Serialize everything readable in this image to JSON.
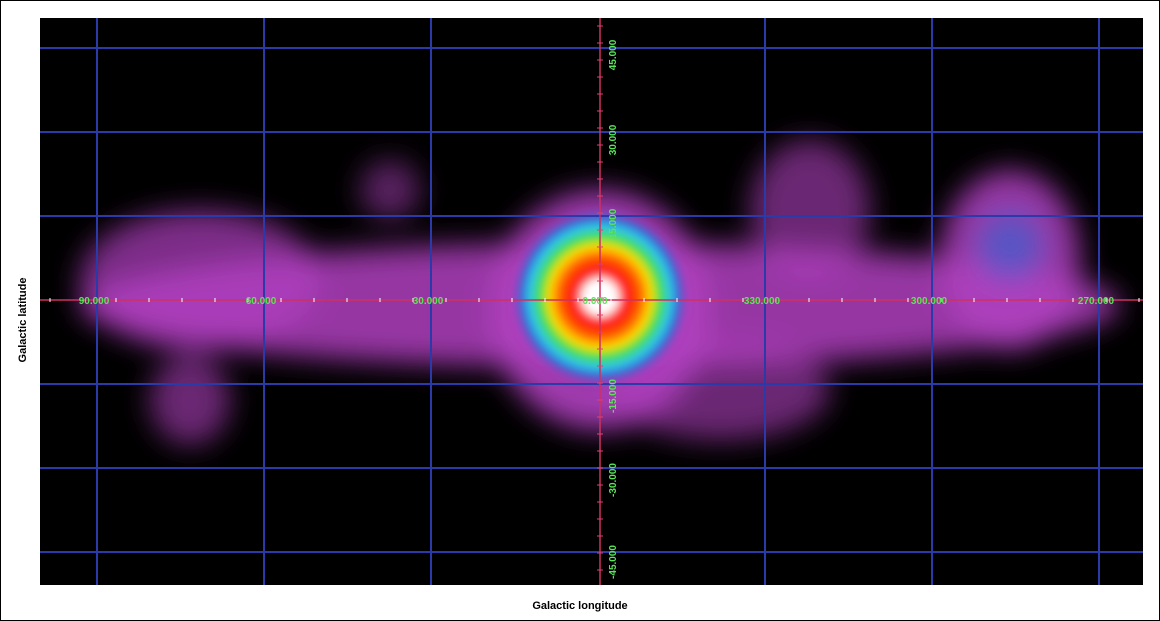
{
  "map": {
    "x_label": "Galactic longitude",
    "y_label": "Galactic latitude",
    "longitude_labels": [
      "90.000",
      "60.000",
      "30.000",
      "0.000",
      "330.000",
      "300.000",
      "270.000"
    ],
    "latitude_labels": [
      "45.000",
      "30.000",
      "15.000",
      "-15.000",
      "-30.000",
      "-45.000"
    ]
  }
}
